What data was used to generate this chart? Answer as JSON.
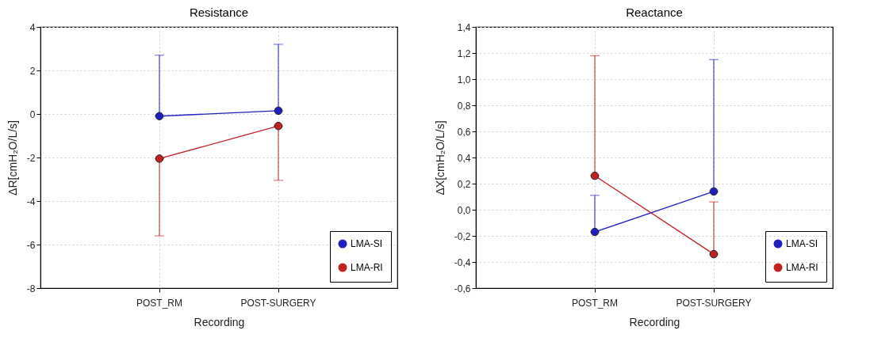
{
  "chart_data": [
    {
      "type": "line",
      "title": "Resistance",
      "xlabel": "Recording",
      "ylabel": "ΔR[cmH₂O/L/s]",
      "categories": [
        "POST_RM",
        "POST-SURGERY"
      ],
      "ylim": [
        -8,
        4
      ],
      "yticks": [
        -8,
        -6,
        -4,
        -2,
        0,
        2,
        4
      ],
      "grid": true,
      "legend": "bottom right",
      "marker": "circle",
      "series": [
        {
          "name": "LMA-SI",
          "color": "#1f1fc4",
          "values": [
            -0.1,
            0.15
          ],
          "errors": [
            [
              -0.1,
              2.7
            ],
            [
              0.15,
              3.2
            ]
          ]
        },
        {
          "name": "LMA-RI",
          "color": "#c42020",
          "values": [
            -2.05,
            -0.55
          ],
          "errors": [
            [
              -5.6,
              -2.05
            ],
            [
              -3.05,
              -0.55
            ]
          ]
        }
      ]
    },
    {
      "type": "line",
      "title": "Reactance",
      "xlabel": "Recording",
      "ylabel": "ΔX[cmH₂O/L/s]",
      "categories": [
        "POST_RM",
        "POST-SURGERY"
      ],
      "ylim": [
        -0.6,
        1.4
      ],
      "yticks": [
        {
          "value": -0.6,
          "label": "-0,6"
        },
        {
          "value": -0.4,
          "label": "-0,4"
        },
        {
          "value": -0.2,
          "label": "-0,2"
        },
        {
          "value": 0,
          "label": "0,0"
        },
        {
          "value": 0.2,
          "label": "0,2"
        },
        {
          "value": 0.4,
          "label": "0,4"
        },
        {
          "value": 0.6,
          "label": "0,6"
        },
        {
          "value": 0.8,
          "label": "0,8"
        },
        {
          "value": 1.0,
          "label": "1,0"
        },
        {
          "value": 1.2,
          "label": "1,2"
        },
        {
          "value": 1.4,
          "label": "1,4"
        }
      ],
      "grid": true,
      "legend": "bottom right",
      "marker": "circle",
      "series": [
        {
          "name": "LMA-SI",
          "color": "#1f1fc4",
          "values": [
            -0.17,
            0.14
          ],
          "errors": [
            [
              -0.17,
              0.11
            ],
            [
              0.14,
              1.15
            ]
          ]
        },
        {
          "name": "LMA-RI",
          "color": "#c42020",
          "values": [
            0.26,
            -0.34
          ],
          "errors": [
            [
              0.26,
              1.18
            ],
            [
              -0.34,
              0.06
            ]
          ]
        }
      ]
    }
  ]
}
